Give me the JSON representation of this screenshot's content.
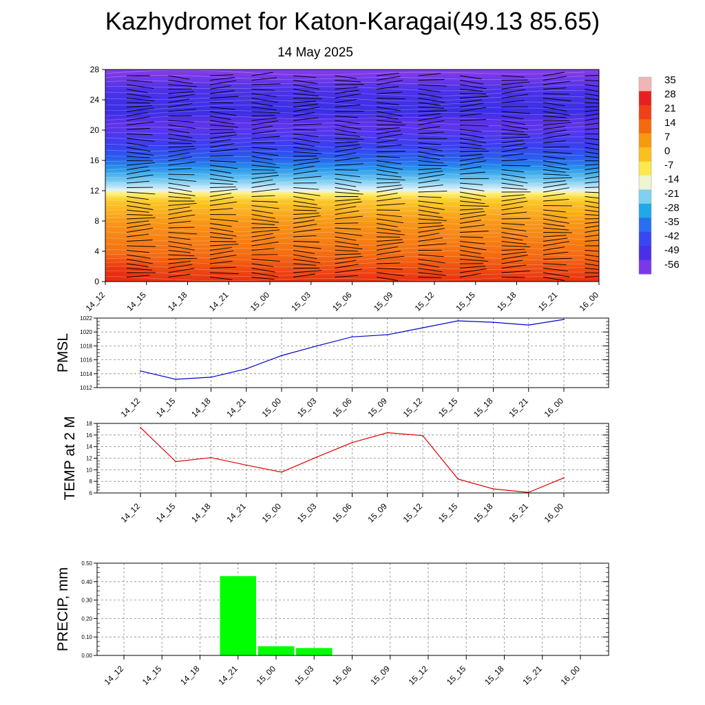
{
  "title": "Kazhydromet for Katon-Karagai(49.13 85.65)",
  "subtitle": "14 May 2025",
  "time_labels": [
    "14_12",
    "14_15",
    "14_18",
    "14_21",
    "15_00",
    "15_03",
    "15_06",
    "15_09",
    "15_12",
    "15_15",
    "15_18",
    "15_21",
    "16_00"
  ],
  "colorbar": {
    "labels": [
      "35",
      "28",
      "21",
      "14",
      "7",
      "0",
      "-7",
      "-14",
      "-21",
      "-28",
      "-35",
      "-42",
      "-49",
      "-56"
    ],
    "colors": [
      "#f2b5b5",
      "#e62020",
      "#f04018",
      "#f56a10",
      "#f89a10",
      "#fbc020",
      "#fde850",
      "#eef5d0",
      "#7fd0f0",
      "#20a8e8",
      "#2870f0",
      "#3848f0",
      "#4830e8",
      "#7b38e8"
    ]
  },
  "chart_data": [
    {
      "type": "heatmap",
      "y_ticks": [
        "0",
        "4",
        "8",
        "12",
        "16",
        "20",
        "24",
        "28"
      ],
      "ylim": [
        0,
        28
      ],
      "x_categories": [
        "14_12",
        "14_15",
        "14_18",
        "14_21",
        "15_00",
        "15_03",
        "15_06",
        "15_09",
        "15_12",
        "15_15",
        "15_18",
        "15_21",
        "16_00"
      ],
      "overlay": "wind barbs"
    },
    {
      "type": "line",
      "ylabel": "PMSL",
      "color": "#0000cc",
      "categories": [
        "14_12",
        "14_15",
        "14_18",
        "14_21",
        "15_00",
        "15_03",
        "15_06",
        "15_09",
        "15_12",
        "15_15",
        "15_18",
        "15_21",
        "16_00"
      ],
      "values": [
        1014.4,
        1013.2,
        1013.5,
        1014.7,
        1016.6,
        1018.0,
        1019.3,
        1019.6,
        1020.6,
        1021.6,
        1021.4,
        1021.0,
        1021.8
      ],
      "ylim": [
        1012,
        1022
      ],
      "y_ticks": [
        "1012",
        "1014",
        "1016",
        "1018",
        "1020",
        "1022"
      ],
      "grid": true
    },
    {
      "type": "line",
      "ylabel": "TEMP at 2 M",
      "color": "#e00000",
      "categories": [
        "14_12",
        "14_15",
        "14_18",
        "14_21",
        "15_00",
        "15_03",
        "15_06",
        "15_09",
        "15_12",
        "15_15",
        "15_18",
        "15_21",
        "16_00"
      ],
      "values": [
        17.3,
        11.4,
        12.1,
        10.8,
        9.6,
        12.2,
        14.7,
        16.4,
        15.9,
        8.4,
        6.7,
        6.1,
        8.6
      ],
      "ylim": [
        6,
        18
      ],
      "y_ticks": [
        "6",
        "8",
        "10",
        "12",
        "14",
        "16",
        "18"
      ],
      "grid": true
    },
    {
      "type": "bar",
      "ylabel": "PRECIP, mm",
      "color": "#00ff00",
      "categories": [
        "14_12",
        "14_15",
        "14_18",
        "14_21",
        "15_00",
        "15_03",
        "15_06",
        "15_09",
        "15_12",
        "15_15",
        "15_18",
        "15_21",
        "16_00"
      ],
      "values": [
        0,
        0,
        0,
        0.43,
        0.05,
        0.04,
        0,
        0,
        0,
        0,
        0,
        0,
        0
      ],
      "ylim": [
        0,
        0.5
      ],
      "y_ticks": [
        "0.00",
        "0.10",
        "0.20",
        "0.30",
        "0.40",
        "0.50"
      ],
      "grid": true
    }
  ]
}
